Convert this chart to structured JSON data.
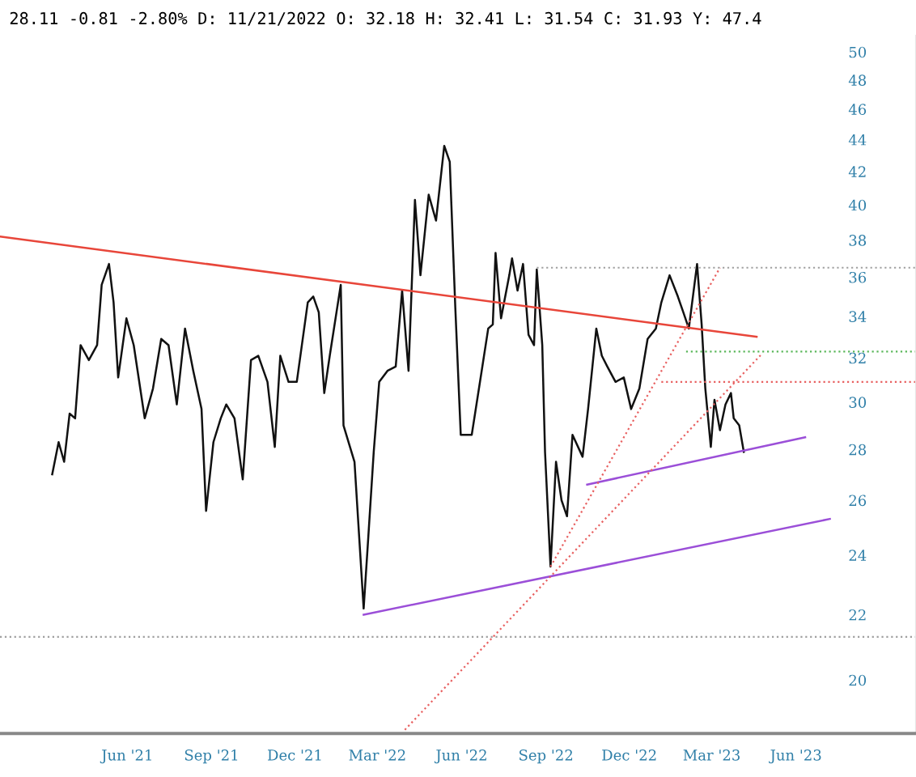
{
  "chart_data": {
    "type": "line",
    "annotations": [
      "28.11",
      "-0.81",
      "-2.80%",
      "D: 11/21/2022",
      "O: 32.18",
      "H: 32.41",
      "L: 31.54",
      "C: 31.93",
      "Y: 47.4"
    ],
    "log": true,
    "grid": false,
    "xlim": [
      "2021-01-13",
      "2023-10-10"
    ],
    "xticks": [
      {
        "value": "2021-06-01",
        "label": "Jun '21"
      },
      {
        "value": "2021-09-01",
        "label": "Sep '21"
      },
      {
        "value": "2021-12-01",
        "label": "Dec '21"
      },
      {
        "value": "2022-03-01",
        "label": "Mar '22"
      },
      {
        "value": "2022-06-01",
        "label": "Jun '22"
      },
      {
        "value": "2022-09-01",
        "label": "Sep '22"
      },
      {
        "value": "2022-12-01",
        "label": "Dec '22"
      },
      {
        "value": "2023-03-01",
        "label": "Mar '23"
      },
      {
        "value": "2023-06-01",
        "label": "Jun '23"
      }
    ],
    "ylim": [
      18.5,
      51.2
    ],
    "yticks": [
      20,
      22,
      24,
      26,
      28,
      30,
      32,
      34,
      36,
      38,
      40,
      42,
      44,
      46,
      48,
      50
    ],
    "ref_lines": [
      {
        "axis": "y",
        "value": 21.3,
        "color": "#a0a0a0",
        "line_style": "dotted"
      }
    ],
    "series": [
      {
        "color": "#111111",
        "line_style": "solid",
        "x": [
          "2021-03-11",
          "2021-03-18",
          "2021-03-24",
          "2021-03-30",
          "2021-04-05",
          "2021-04-11",
          "2021-04-20",
          "2021-04-29",
          "2021-05-04",
          "2021-05-12",
          "2021-05-17",
          "2021-05-22",
          "2021-05-31",
          "2021-06-08",
          "2021-06-20",
          "2021-06-29",
          "2021-07-08",
          "2021-07-16",
          "2021-07-25",
          "2021-08-03",
          "2021-08-12",
          "2021-08-21",
          "2021-08-26",
          "2021-09-03",
          "2021-09-11",
          "2021-09-17",
          "2021-09-26",
          "2021-10-05",
          "2021-10-14",
          "2021-10-22",
          "2021-11-01",
          "2021-11-09",
          "2021-11-15",
          "2021-11-24",
          "2021-12-03",
          "2021-12-15",
          "2021-12-21",
          "2021-12-27",
          "2022-01-02",
          "2022-01-08",
          "2022-01-20",
          "2022-01-23",
          "2022-02-04",
          "2022-02-14",
          "2022-02-19",
          "2022-02-25",
          "2022-03-03",
          "2022-03-12",
          "2022-03-21",
          "2022-03-28",
          "2022-04-04",
          "2022-04-11",
          "2022-04-17",
          "2022-04-26",
          "2022-05-04",
          "2022-05-13",
          "2022-05-19",
          "2022-05-25",
          "2022-05-31",
          "2022-06-12",
          "2022-06-21",
          "2022-06-30",
          "2022-07-05",
          "2022-07-08",
          "2022-07-14",
          "2022-07-23",
          "2022-07-26",
          "2022-08-01",
          "2022-08-07",
          "2022-08-13",
          "2022-08-19",
          "2022-08-22",
          "2022-08-28",
          "2022-08-31",
          "2022-09-06",
          "2022-09-12",
          "2022-09-18",
          "2022-09-24",
          "2022-09-30",
          "2022-10-11",
          "2022-10-17",
          "2022-10-26",
          "2022-11-01",
          "2022-11-07",
          "2022-11-16",
          "2022-11-25",
          "2022-12-03",
          "2022-12-12",
          "2022-12-21",
          "2022-12-30",
          "2023-01-05",
          "2023-01-14",
          "2023-01-23",
          "2023-01-29",
          "2023-02-04",
          "2023-02-13",
          "2023-02-18",
          "2023-02-22",
          "2023-02-28",
          "2023-03-04",
          "2023-03-10",
          "2023-03-16",
          "2023-03-22",
          "2023-03-25",
          "2023-03-31",
          "2023-04-05"
        ],
        "values": [
          27.0,
          28.3,
          27.5,
          29.5,
          29.3,
          32.6,
          31.9,
          32.6,
          35.6,
          36.7,
          34.7,
          31.1,
          33.9,
          32.6,
          29.3,
          30.6,
          32.9,
          32.6,
          29.9,
          33.4,
          31.4,
          29.7,
          25.6,
          28.3,
          29.3,
          29.9,
          29.3,
          26.8,
          31.9,
          32.1,
          30.9,
          28.1,
          32.1,
          30.9,
          30.9,
          34.7,
          35.0,
          34.2,
          30.4,
          32.1,
          35.6,
          29.0,
          27.5,
          22.2,
          24.6,
          27.9,
          30.9,
          31.4,
          31.6,
          35.3,
          31.4,
          40.3,
          36.1,
          40.6,
          39.1,
          43.6,
          42.6,
          34.5,
          28.6,
          28.6,
          30.9,
          33.4,
          33.6,
          37.3,
          33.9,
          36.1,
          37.0,
          35.3,
          36.7,
          33.1,
          32.6,
          36.4,
          32.6,
          27.9,
          23.6,
          27.5,
          26.0,
          25.4,
          28.6,
          27.7,
          29.7,
          33.4,
          32.1,
          31.6,
          30.9,
          31.1,
          29.7,
          30.6,
          32.9,
          33.4,
          34.7,
          36.1,
          35.0,
          34.2,
          33.4,
          36.7,
          33.6,
          30.6,
          28.1,
          30.1,
          28.8,
          29.9,
          30.4,
          29.3,
          29.0,
          27.9
        ]
      },
      {
        "color": "#e8463a",
        "line_style": "solid",
        "x": [
          "2021-01-13",
          "2023-04-19"
        ],
        "values": [
          38.2,
          33.0
        ]
      },
      {
        "color": "#9b4fd8",
        "line_style": "solid",
        "x": [
          "2022-02-14",
          "2023-07-08"
        ],
        "values": [
          22.0,
          25.3
        ]
      },
      {
        "color": "#9b4fd8",
        "line_style": "solid",
        "x": [
          "2022-10-16",
          "2023-06-11"
        ],
        "values": [
          26.6,
          28.5
        ]
      },
      {
        "color": "#e86060",
        "line_style": "dotted",
        "x": [
          "2022-03-31",
          "2023-04-25"
        ],
        "values": [
          18.6,
          32.2
        ]
      },
      {
        "color": "#e86060",
        "line_style": "dotted",
        "x": [
          "2022-09-06",
          "2023-03-10"
        ],
        "values": [
          23.6,
          36.5
        ]
      },
      {
        "color": "#a0a0a0",
        "line_style": "dotted",
        "x": [
          "2022-08-22",
          "2023-10-10"
        ],
        "values": [
          36.5,
          36.5
        ]
      },
      {
        "color": "#5cb85c",
        "line_style": "dotted",
        "x": [
          "2023-02-01",
          "2023-10-10"
        ],
        "values": [
          32.3,
          32.3
        ]
      },
      {
        "color": "#e86060",
        "line_style": "dotted",
        "x": [
          "2023-01-05",
          "2023-10-10"
        ],
        "values": [
          30.9,
          30.9
        ]
      }
    ]
  }
}
